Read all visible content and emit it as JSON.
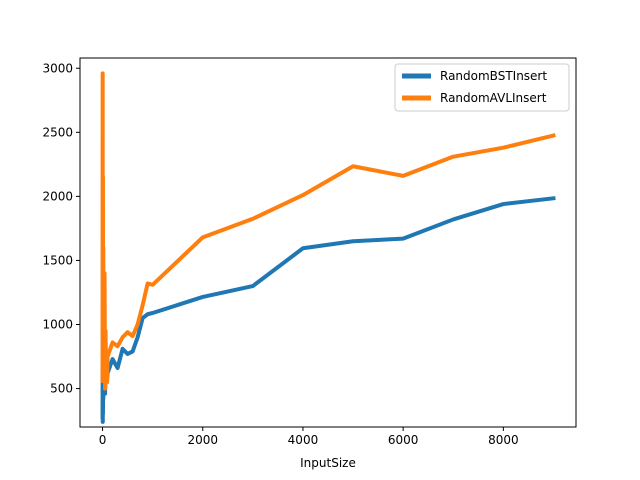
{
  "chart_data": {
    "type": "line",
    "title": "",
    "xlabel": "InputSize",
    "ylabel": "",
    "xlim": [
      -450,
      9450
    ],
    "ylim": [
      200,
      3080
    ],
    "xticks": [
      0,
      2000,
      4000,
      6000,
      8000
    ],
    "yticks": [
      500,
      1000,
      1500,
      2000,
      2500,
      3000
    ],
    "grid": false,
    "legend_position": "top-right",
    "series": [
      {
        "name": "RandomBSTInsert",
        "color": "#1f77b4",
        "x": [
          0,
          2,
          4,
          6,
          8,
          10,
          15,
          20,
          30,
          40,
          50,
          60,
          70,
          80,
          90,
          100,
          200,
          300,
          400,
          500,
          600,
          700,
          800,
          900,
          1000,
          2000,
          3000,
          4000,
          5000,
          6000,
          7000,
          8000,
          9000
        ],
        "y": [
          280,
          660,
          240,
          400,
          300,
          520,
          420,
          600,
          500,
          560,
          460,
          600,
          640,
          700,
          560,
          620,
          730,
          660,
          810,
          770,
          790,
          900,
          1050,
          1080,
          1090,
          1215,
          1300,
          1595,
          1650,
          1670,
          1820,
          1940,
          1985
        ]
      },
      {
        "name": "RandomAVLInsert",
        "color": "#ff7f0e",
        "x": [
          0,
          2,
          4,
          6,
          8,
          10,
          15,
          20,
          30,
          40,
          50,
          60,
          70,
          80,
          90,
          100,
          200,
          300,
          400,
          500,
          600,
          700,
          800,
          900,
          1000,
          2000,
          3000,
          4000,
          5000,
          6000,
          7000,
          8000,
          9000
        ],
        "y": [
          560,
          2960,
          1200,
          700,
          2150,
          900,
          1600,
          800,
          600,
          1400,
          500,
          950,
          600,
          700,
          550,
          750,
          860,
          830,
          900,
          940,
          910,
          1000,
          1150,
          1320,
          1310,
          1680,
          1825,
          2010,
          2235,
          2160,
          2310,
          2380,
          2475
        ]
      }
    ]
  }
}
